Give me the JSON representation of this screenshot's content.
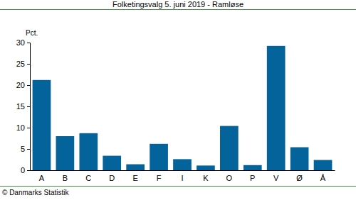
{
  "chart_data": {
    "type": "bar",
    "title": "Folketingsvalg 5. juni 2019 - Ramløse",
    "y_label": "Pct.",
    "annotation": "© Danmarks Statistik",
    "categories": [
      "A",
      "B",
      "C",
      "D",
      "E",
      "F",
      "I",
      "K",
      "O",
      "P",
      "V",
      "Ø",
      "Å"
    ],
    "values": [
      21.2,
      8.0,
      8.7,
      3.4,
      1.4,
      6.2,
      2.6,
      1.1,
      10.4,
      1.2,
      29.2,
      5.4,
      2.4
    ],
    "color": "#03639a",
    "ylim": [
      0,
      30
    ],
    "yticks": [
      0,
      5,
      10,
      15,
      20,
      25,
      30
    ],
    "grid": false
  }
}
